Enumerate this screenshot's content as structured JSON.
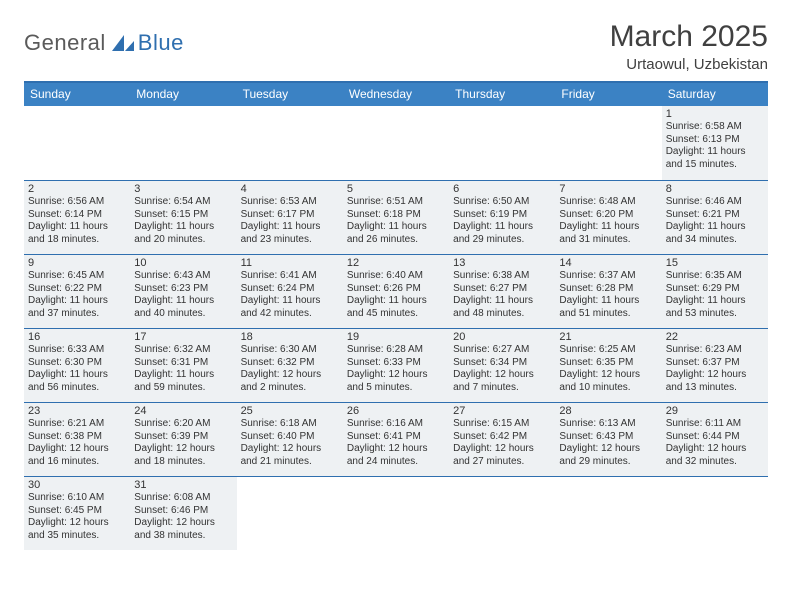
{
  "logo": {
    "general": "General",
    "blue": "Blue"
  },
  "title": {
    "month": "March 2025",
    "location": "Urtaowul, Uzbekistan"
  },
  "colors": {
    "header_bg": "#3b82c4",
    "border": "#2f6faf",
    "shaded_bg": "#eef1f3",
    "text": "#333333"
  },
  "weekdays": [
    "Sunday",
    "Monday",
    "Tuesday",
    "Wednesday",
    "Thursday",
    "Friday",
    "Saturday"
  ],
  "first_weekday_index": 6,
  "days": [
    {
      "n": 1,
      "sr": "6:58 AM",
      "ss": "6:13 PM",
      "dl": "11 hours and 15 minutes."
    },
    {
      "n": 2,
      "sr": "6:56 AM",
      "ss": "6:14 PM",
      "dl": "11 hours and 18 minutes."
    },
    {
      "n": 3,
      "sr": "6:54 AM",
      "ss": "6:15 PM",
      "dl": "11 hours and 20 minutes."
    },
    {
      "n": 4,
      "sr": "6:53 AM",
      "ss": "6:17 PM",
      "dl": "11 hours and 23 minutes."
    },
    {
      "n": 5,
      "sr": "6:51 AM",
      "ss": "6:18 PM",
      "dl": "11 hours and 26 minutes."
    },
    {
      "n": 6,
      "sr": "6:50 AM",
      "ss": "6:19 PM",
      "dl": "11 hours and 29 minutes."
    },
    {
      "n": 7,
      "sr": "6:48 AM",
      "ss": "6:20 PM",
      "dl": "11 hours and 31 minutes."
    },
    {
      "n": 8,
      "sr": "6:46 AM",
      "ss": "6:21 PM",
      "dl": "11 hours and 34 minutes."
    },
    {
      "n": 9,
      "sr": "6:45 AM",
      "ss": "6:22 PM",
      "dl": "11 hours and 37 minutes."
    },
    {
      "n": 10,
      "sr": "6:43 AM",
      "ss": "6:23 PM",
      "dl": "11 hours and 40 minutes."
    },
    {
      "n": 11,
      "sr": "6:41 AM",
      "ss": "6:24 PM",
      "dl": "11 hours and 42 minutes."
    },
    {
      "n": 12,
      "sr": "6:40 AM",
      "ss": "6:26 PM",
      "dl": "11 hours and 45 minutes."
    },
    {
      "n": 13,
      "sr": "6:38 AM",
      "ss": "6:27 PM",
      "dl": "11 hours and 48 minutes."
    },
    {
      "n": 14,
      "sr": "6:37 AM",
      "ss": "6:28 PM",
      "dl": "11 hours and 51 minutes."
    },
    {
      "n": 15,
      "sr": "6:35 AM",
      "ss": "6:29 PM",
      "dl": "11 hours and 53 minutes."
    },
    {
      "n": 16,
      "sr": "6:33 AM",
      "ss": "6:30 PM",
      "dl": "11 hours and 56 minutes."
    },
    {
      "n": 17,
      "sr": "6:32 AM",
      "ss": "6:31 PM",
      "dl": "11 hours and 59 minutes."
    },
    {
      "n": 18,
      "sr": "6:30 AM",
      "ss": "6:32 PM",
      "dl": "12 hours and 2 minutes."
    },
    {
      "n": 19,
      "sr": "6:28 AM",
      "ss": "6:33 PM",
      "dl": "12 hours and 5 minutes."
    },
    {
      "n": 20,
      "sr": "6:27 AM",
      "ss": "6:34 PM",
      "dl": "12 hours and 7 minutes."
    },
    {
      "n": 21,
      "sr": "6:25 AM",
      "ss": "6:35 PM",
      "dl": "12 hours and 10 minutes."
    },
    {
      "n": 22,
      "sr": "6:23 AM",
      "ss": "6:37 PM",
      "dl": "12 hours and 13 minutes."
    },
    {
      "n": 23,
      "sr": "6:21 AM",
      "ss": "6:38 PM",
      "dl": "12 hours and 16 minutes."
    },
    {
      "n": 24,
      "sr": "6:20 AM",
      "ss": "6:39 PM",
      "dl": "12 hours and 18 minutes."
    },
    {
      "n": 25,
      "sr": "6:18 AM",
      "ss": "6:40 PM",
      "dl": "12 hours and 21 minutes."
    },
    {
      "n": 26,
      "sr": "6:16 AM",
      "ss": "6:41 PM",
      "dl": "12 hours and 24 minutes."
    },
    {
      "n": 27,
      "sr": "6:15 AM",
      "ss": "6:42 PM",
      "dl": "12 hours and 27 minutes."
    },
    {
      "n": 28,
      "sr": "6:13 AM",
      "ss": "6:43 PM",
      "dl": "12 hours and 29 minutes."
    },
    {
      "n": 29,
      "sr": "6:11 AM",
      "ss": "6:44 PM",
      "dl": "12 hours and 32 minutes."
    },
    {
      "n": 30,
      "sr": "6:10 AM",
      "ss": "6:45 PM",
      "dl": "12 hours and 35 minutes."
    },
    {
      "n": 31,
      "sr": "6:08 AM",
      "ss": "6:46 PM",
      "dl": "12 hours and 38 minutes."
    }
  ],
  "labels": {
    "sunrise": "Sunrise:",
    "sunset": "Sunset:",
    "daylight": "Daylight:"
  }
}
